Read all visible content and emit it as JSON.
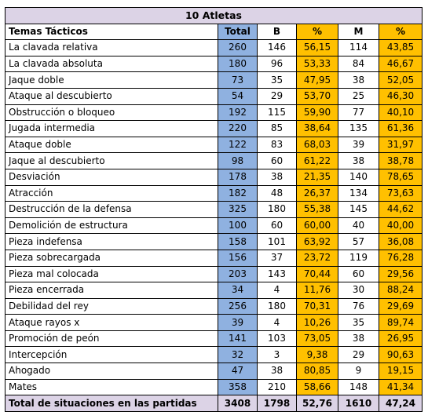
{
  "title": "10 Atletas",
  "headers": [
    "Temas Tácticos",
    "Total",
    "B",
    "%",
    "M",
    "%"
  ],
  "rows": [
    [
      "La clavada relativa",
      "260",
      "146",
      "56,15",
      "114",
      "43,85"
    ],
    [
      "La clavada absoluta",
      "180",
      "96",
      "53,33",
      "84",
      "46,67"
    ],
    [
      "Jaque doble",
      "73",
      "35",
      "47,95",
      "38",
      "52,05"
    ],
    [
      "Ataque al descubierto",
      "54",
      "29",
      "53,70",
      "25",
      "46,30"
    ],
    [
      "Obstrucción  o bloqueo",
      "192",
      "115",
      "59,90",
      "77",
      "40,10"
    ],
    [
      "Jugada intermedia",
      "220",
      "85",
      "38,64",
      "135",
      "61,36"
    ],
    [
      "Ataque doble",
      "122",
      "83",
      "68,03",
      "39",
      "31,97"
    ],
    [
      "Jaque al descubierto",
      "98",
      "60",
      "61,22",
      "38",
      "38,78"
    ],
    [
      "Desviación",
      "178",
      "38",
      "21,35",
      "140",
      "78,65"
    ],
    [
      "Atracción",
      "182",
      "48",
      "26,37",
      "134",
      "73,63"
    ],
    [
      "Destrucción de la defensa",
      "325",
      "180",
      "55,38",
      "145",
      "44,62"
    ],
    [
      "Demolición de estructura",
      "100",
      "60",
      "60,00",
      "40",
      "40,00"
    ],
    [
      "Pieza indefensa",
      "158",
      "101",
      "63,92",
      "57",
      "36,08"
    ],
    [
      "Pieza sobrecargada",
      "156",
      "37",
      "23,72",
      "119",
      "76,28"
    ],
    [
      "Pieza mal colocada",
      "203",
      "143",
      "70,44",
      "60",
      "29,56"
    ],
    [
      "Pieza encerrada",
      "34",
      "4",
      "11,76",
      "30",
      "88,24"
    ],
    [
      "Debilidad del rey",
      "256",
      "180",
      "70,31",
      "76",
      "29,69"
    ],
    [
      "Ataque rayos x",
      "39",
      "4",
      "10,26",
      "35",
      "89,74"
    ],
    [
      "Promoción de peón",
      "141",
      "103",
      "73,05",
      "38",
      "26,95"
    ],
    [
      "Intercepción",
      "32",
      "3",
      "9,38",
      "29",
      "90,63"
    ],
    [
      "Ahogado",
      "47",
      "38",
      "80,85",
      "9",
      "19,15"
    ],
    [
      "Mates",
      "358",
      "210",
      "58,66",
      "148",
      "41,34"
    ]
  ],
  "footer": [
    "Total de situaciones  en las partidas",
    "3408",
    "1798",
    "52,76",
    "1610",
    "47,24"
  ],
  "colors": {
    "title_bg": "#dcd3e6",
    "total_bg": "#8fb1e0",
    "pct_bg": "#ffc000"
  }
}
